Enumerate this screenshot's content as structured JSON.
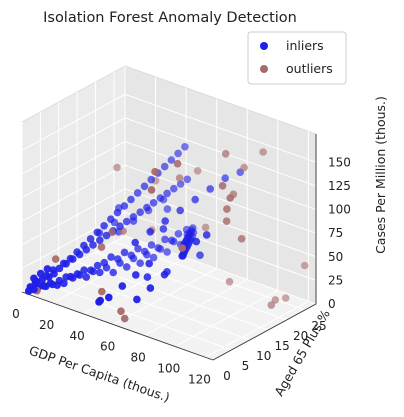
{
  "chart_data": {
    "type": "scatter",
    "projection": "3d",
    "title": "Isolation Forest Anomaly Detection",
    "xlabel": "GDP Per Capita (thous.)",
    "ylabel": "Aged 65 Plus %",
    "zlabel": "Cases Per Million (thous.)",
    "xlim": [
      0,
      125
    ],
    "ylim": [
      0,
      28
    ],
    "zlim": [
      0,
      180
    ],
    "xticks": [
      "0",
      "20",
      "40",
      "60",
      "80",
      "100",
      "120"
    ],
    "yticks": [
      "0",
      "5",
      "10",
      "15",
      "20",
      "25"
    ],
    "zticks": [
      "0",
      "25",
      "50",
      "75",
      "100",
      "125",
      "150"
    ],
    "grid": true,
    "legend_position": "top-right",
    "series": [
      {
        "name": "inliers",
        "color": "#1f1fe8",
        "points": [
          [
            2,
            1,
            0
          ],
          [
            3,
            2,
            0
          ],
          [
            4,
            3,
            2
          ],
          [
            5,
            2,
            3
          ],
          [
            6,
            4,
            1
          ],
          [
            3,
            1,
            5
          ],
          [
            7,
            3,
            4
          ],
          [
            8,
            5,
            2
          ],
          [
            9,
            4,
            6
          ],
          [
            4,
            2,
            8
          ],
          [
            10,
            6,
            5
          ],
          [
            11,
            5,
            3
          ],
          [
            6,
            3,
            10
          ],
          [
            12,
            7,
            8
          ],
          [
            13,
            6,
            4
          ],
          [
            8,
            4,
            12
          ],
          [
            14,
            8,
            6
          ],
          [
            15,
            7,
            10
          ],
          [
            9,
            5,
            14
          ],
          [
            16,
            9,
            8
          ],
          [
            17,
            8,
            12
          ],
          [
            5,
            3,
            16
          ],
          [
            18,
            10,
            5
          ],
          [
            19,
            9,
            15
          ],
          [
            10,
            6,
            18
          ],
          [
            20,
            11,
            10
          ],
          [
            21,
            10,
            14
          ],
          [
            7,
            4,
            20
          ],
          [
            22,
            12,
            8
          ],
          [
            23,
            11,
            18
          ],
          [
            12,
            7,
            22
          ],
          [
            24,
            13,
            12
          ],
          [
            25,
            12,
            20
          ],
          [
            3,
            2,
            12
          ],
          [
            26,
            14,
            6
          ],
          [
            27,
            13,
            25
          ],
          [
            14,
            8,
            26
          ],
          [
            28,
            15,
            15
          ],
          [
            29,
            14,
            22
          ],
          [
            30,
            16,
            10
          ],
          [
            2,
            3,
            6
          ],
          [
            31,
            15,
            28
          ],
          [
            16,
            9,
            30
          ],
          [
            32,
            17,
            18
          ],
          [
            33,
            16,
            24
          ],
          [
            4,
            5,
            9
          ],
          [
            34,
            18,
            12
          ],
          [
            35,
            17,
            30
          ],
          [
            18,
            10,
            34
          ],
          [
            36,
            19,
            20
          ],
          [
            37,
            18,
            26
          ],
          [
            6,
            6,
            14
          ],
          [
            38,
            20,
            16
          ],
          [
            39,
            19,
            32
          ],
          [
            20,
            11,
            38
          ],
          [
            40,
            21,
            24
          ],
          [
            41,
            20,
            28
          ],
          [
            8,
            8,
            18
          ],
          [
            42,
            22,
            20
          ],
          [
            43,
            21,
            36
          ],
          [
            22,
            12,
            42
          ],
          [
            44,
            23,
            30
          ],
          [
            45,
            22,
            34
          ],
          [
            10,
            9,
            22
          ],
          [
            46,
            24,
            26
          ],
          [
            47,
            23,
            40
          ],
          [
            24,
            13,
            46
          ],
          [
            48,
            25,
            36
          ],
          [
            50,
            24,
            44
          ],
          [
            12,
            10,
            28
          ],
          [
            52,
            25,
            40
          ],
          [
            54,
            24,
            48
          ],
          [
            26,
            14,
            50
          ],
          [
            56,
            23,
            42
          ],
          [
            58,
            22,
            52
          ],
          [
            14,
            11,
            34
          ],
          [
            60,
            21,
            46
          ],
          [
            62,
            20,
            56
          ],
          [
            28,
            15,
            54
          ],
          [
            64,
            19,
            50
          ],
          [
            66,
            18,
            60
          ],
          [
            16,
            12,
            40
          ],
          [
            68,
            17,
            54
          ],
          [
            70,
            16,
            64
          ],
          [
            30,
            16,
            58
          ],
          [
            72,
            15,
            58
          ],
          [
            74,
            14,
            68
          ],
          [
            18,
            13,
            46
          ],
          [
            76,
            13,
            62
          ],
          [
            78,
            12,
            72
          ],
          [
            32,
            17,
            62
          ],
          [
            80,
            11,
            66
          ],
          [
            82,
            10,
            76
          ],
          [
            20,
            14,
            52
          ],
          [
            84,
            9,
            70
          ],
          [
            86,
            8,
            80
          ],
          [
            34,
            18,
            66
          ],
          [
            88,
            7,
            74
          ],
          [
            36,
            19,
            70
          ],
          [
            22,
            15,
            58
          ],
          [
            38,
            20,
            74
          ],
          [
            40,
            21,
            78
          ],
          [
            24,
            16,
            64
          ],
          [
            42,
            22,
            82
          ],
          [
            44,
            23,
            86
          ],
          [
            26,
            17,
            70
          ],
          [
            46,
            24,
            90
          ],
          [
            48,
            25,
            94
          ],
          [
            28,
            18,
            76
          ],
          [
            30,
            19,
            82
          ],
          [
            32,
            20,
            88
          ],
          [
            34,
            21,
            94
          ],
          [
            36,
            22,
            100
          ],
          [
            38,
            23,
            106
          ],
          [
            40,
            24,
            112
          ],
          [
            42,
            25,
            118
          ],
          [
            44,
            26,
            124
          ],
          [
            50,
            10,
            60
          ],
          [
            55,
            12,
            70
          ],
          [
            60,
            14,
            80
          ],
          [
            65,
            16,
            90
          ],
          [
            70,
            18,
            100
          ],
          [
            75,
            20,
            110
          ],
          [
            80,
            22,
            120
          ],
          [
            85,
            24,
            125
          ],
          [
            15,
            20,
            30
          ],
          [
            20,
            22,
            40
          ],
          [
            25,
            24,
            50
          ],
          [
            30,
            26,
            60
          ],
          [
            35,
            25,
            55
          ],
          [
            10,
            21,
            35
          ],
          [
            5,
            19,
            25
          ],
          [
            8,
            23,
            45
          ],
          [
            52,
            2,
            20
          ],
          [
            56,
            4,
            30
          ],
          [
            60,
            6,
            40
          ],
          [
            64,
            8,
            50
          ],
          [
            68,
            3,
            25
          ],
          [
            72,
            5,
            35
          ],
          [
            48,
            1,
            15
          ],
          [
            44,
            3,
            10
          ],
          [
            66,
            12,
            34
          ],
          [
            74,
            8,
            44
          ],
          [
            78,
            16,
            50
          ],
          [
            58,
            10,
            28
          ],
          [
            62,
            18,
            36
          ],
          [
            90,
            10,
            84
          ],
          [
            92,
            12,
            88
          ],
          [
            54,
            16,
            64
          ]
        ]
      },
      {
        "name": "outliers",
        "color": "#a86a6a",
        "points": [
          [
            115,
            20,
            10
          ],
          [
            120,
            27,
            40
          ],
          [
            110,
            26,
            2
          ],
          [
            108,
            24,
            3
          ],
          [
            100,
            2,
            100
          ],
          [
            2,
            25,
            80
          ],
          [
            60,
            3,
            0
          ],
          [
            20,
            27,
            20
          ],
          [
            110,
            14,
            90
          ],
          [
            80,
            2,
            150
          ],
          [
            90,
            18,
            160
          ],
          [
            100,
            24,
            155
          ],
          [
            85,
            7,
            170
          ],
          [
            40,
            5,
            60
          ],
          [
            95,
            18,
            120
          ],
          [
            60,
            2,
            10
          ],
          [
            110,
            10,
            130
          ],
          [
            55,
            20,
            110
          ],
          [
            10,
            5,
            30
          ],
          [
            75,
            5,
            160
          ],
          [
            30,
            15,
            50
          ],
          [
            112,
            8,
            160
          ],
          [
            5,
            2,
            0
          ],
          [
            45,
            3,
            20
          ],
          [
            30,
            12,
            55
          ],
          [
            50,
            27,
            100
          ],
          [
            20,
            28,
            70
          ],
          [
            78,
            24,
            5
          ],
          [
            60,
            25,
            50
          ],
          [
            105,
            12,
            110
          ],
          [
            90,
            23,
            135
          ],
          [
            117,
            8,
            150
          ]
        ]
      }
    ]
  }
}
